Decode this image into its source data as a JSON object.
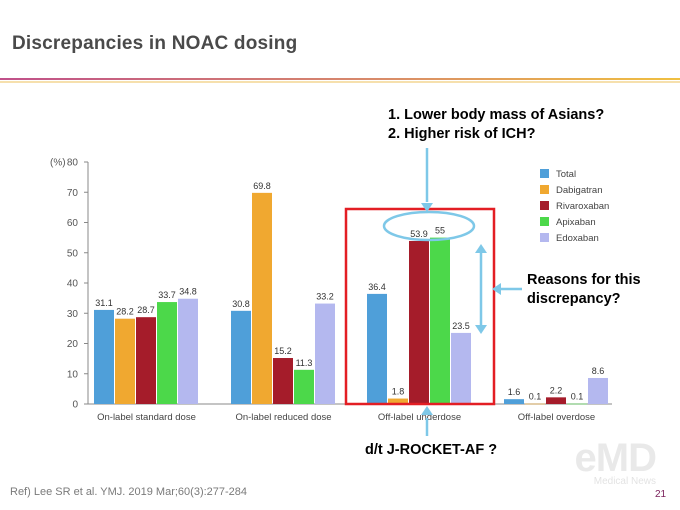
{
  "slide": {
    "title": "Discrepancies in NOAC dosing",
    "reference": "Ref) Lee SR et al. YMJ. 2019 Mar;60(3):277-284",
    "page_number": "21",
    "accent_colors": [
      "#c0508a",
      "#f0c040"
    ]
  },
  "annotations": {
    "reasons_list": [
      "1.  Lower body mass of Asians?",
      "2.  Higher risk of ICH?"
    ],
    "reasons_question": [
      "Reasons for this",
      "discrepancy?"
    ],
    "rocket_note": "d/t J-ROCKET-AF ?"
  },
  "logo": {
    "main": "eMD",
    "sub": "Medical News"
  },
  "chart_data": {
    "type": "bar",
    "ylabel": "(%)",
    "ylim": [
      0,
      80
    ],
    "yticks": [
      0,
      10,
      20,
      30,
      40,
      50,
      60,
      70,
      80
    ],
    "categories": [
      "On-label standard dose",
      "On-label reduced dose",
      "Off-label underdose",
      "Off-label overdose"
    ],
    "series": [
      {
        "name": "Total",
        "color": "#4f9fd9",
        "values": [
          31.1,
          30.8,
          36.4,
          1.6
        ]
      },
      {
        "name": "Dabigatran",
        "color": "#f0a830",
        "values": [
          28.2,
          69.8,
          1.8,
          0.1
        ]
      },
      {
        "name": "Rivaroxaban",
        "color": "#a51c2a",
        "values": [
          28.7,
          15.2,
          53.9,
          2.2
        ]
      },
      {
        "name": "Apixaban",
        "color": "#4cd84a",
        "values": [
          33.7,
          11.3,
          55,
          0.1
        ]
      },
      {
        "name": "Edoxaban",
        "color": "#b4b8ef",
        "values": [
          34.8,
          33.2,
          23.5,
          8.6
        ]
      }
    ],
    "data_labels": [
      [
        "31.1",
        "30.8",
        "36.4",
        "1.6"
      ],
      [
        "28.2",
        "69.8",
        "1.8",
        "0.1"
      ],
      [
        "28.7",
        "15.2",
        "53.9",
        "2.2"
      ],
      [
        "33.7",
        "11.3",
        "55",
        "0.1"
      ],
      [
        "34.8",
        "33.2",
        "23.5",
        "8.6"
      ]
    ],
    "legend": "top-right",
    "grid": false
  }
}
